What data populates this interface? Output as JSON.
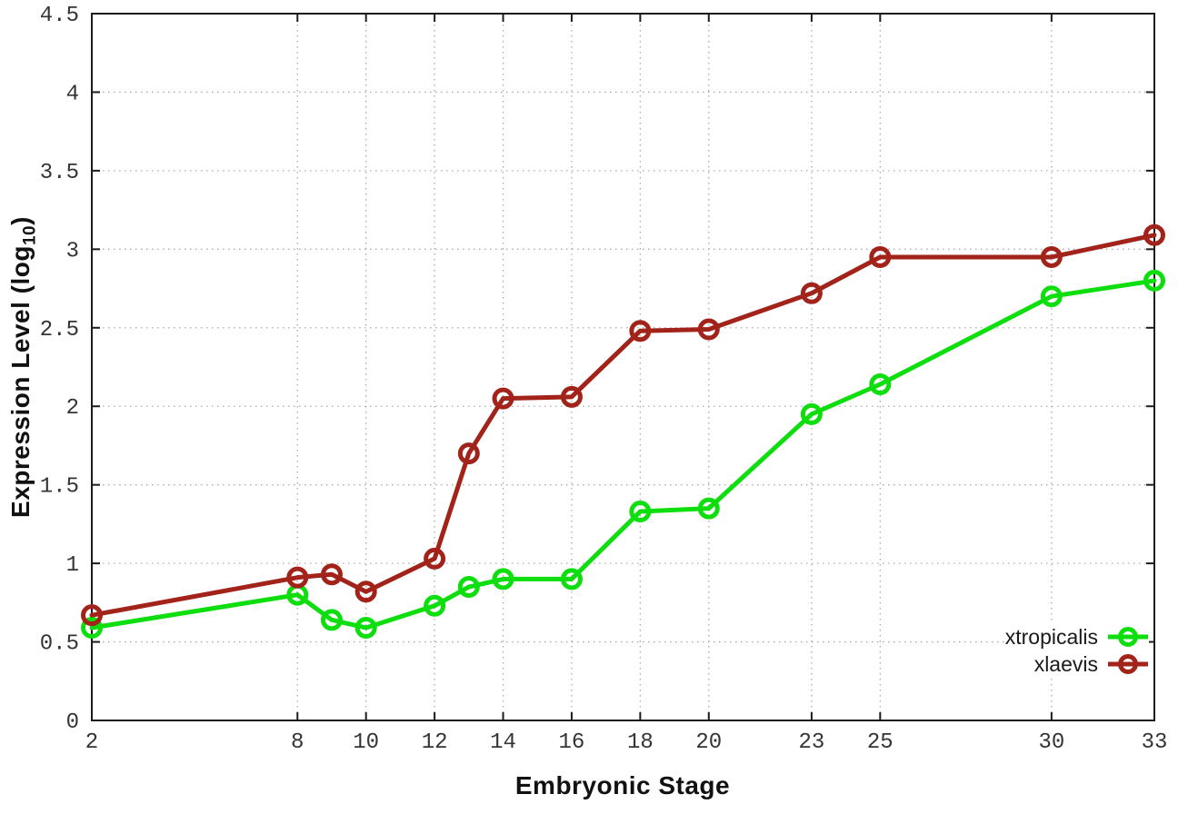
{
  "chart_data": {
    "type": "line",
    "title": "",
    "xlabel": "Embryonic Stage",
    "ylabel": "Expression Level (log10)",
    "ylabel_parts": {
      "text": "Expression Level (log",
      "sub": "10",
      "close": ")"
    },
    "xlim": [
      2,
      33
    ],
    "ylim": [
      0,
      4.5
    ],
    "grid": true,
    "grid_style": "dotted",
    "legend_position": "bottom-right",
    "x": [
      2,
      8,
      9,
      10,
      12,
      13,
      14,
      16,
      18,
      20,
      23,
      25,
      30,
      33
    ],
    "xticks": [
      {
        "value": 2,
        "label": "2"
      },
      {
        "value": 8,
        "label": "8"
      },
      {
        "value": 10,
        "label": "10"
      },
      {
        "value": 12,
        "label": "12"
      },
      {
        "value": 14,
        "label": "14"
      },
      {
        "value": 16,
        "label": "16"
      },
      {
        "value": 18,
        "label": "18"
      },
      {
        "value": 20,
        "label": "20"
      },
      {
        "value": 23,
        "label": "23"
      },
      {
        "value": 25,
        "label": "25"
      },
      {
        "value": 30,
        "label": "30"
      },
      {
        "value": 33,
        "label": "33"
      }
    ],
    "yticks": [
      {
        "value": 0,
        "label": "0"
      },
      {
        "value": 0.5,
        "label": "0.5"
      },
      {
        "value": 1,
        "label": "1"
      },
      {
        "value": 1.5,
        "label": "1.5"
      },
      {
        "value": 2,
        "label": "2"
      },
      {
        "value": 2.5,
        "label": "2.5"
      },
      {
        "value": 3,
        "label": "3"
      },
      {
        "value": 3.5,
        "label": "3.5"
      },
      {
        "value": 4,
        "label": "4"
      },
      {
        "value": 4.5,
        "label": "4.5"
      }
    ],
    "series": [
      {
        "name": "xtropicalis",
        "color": "#0edd0e",
        "marker": "open-circle",
        "values": [
          0.59,
          0.8,
          0.64,
          0.59,
          0.73,
          0.85,
          0.9,
          0.9,
          1.33,
          1.35,
          1.95,
          2.14,
          2.7,
          2.8
        ]
      },
      {
        "name": "xlaevis",
        "color": "#a2231a",
        "marker": "open-circle",
        "values": [
          0.67,
          0.91,
          0.93,
          0.82,
          1.03,
          1.7,
          2.05,
          2.06,
          2.48,
          2.49,
          2.72,
          2.95,
          2.95,
          3.09
        ]
      }
    ],
    "style": {
      "border_color": "#1c1c1c",
      "grid_color": "#ababab",
      "tick_label_color": "#343434",
      "background": "#ffffff"
    }
  }
}
